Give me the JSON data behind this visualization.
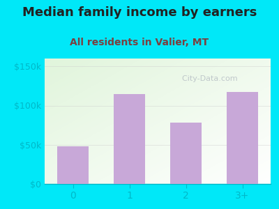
{
  "title": "Median family income by earners",
  "subtitle": "All residents in Valier, MT",
  "categories": [
    "0",
    "1",
    "2",
    "3+"
  ],
  "values": [
    48000,
    115000,
    78000,
    117000
  ],
  "bar_color": "#c8a8d8",
  "ylim": [
    0,
    160000
  ],
  "yticks": [
    0,
    50000,
    100000,
    150000
  ],
  "ytick_labels": [
    "$0",
    "$50k",
    "$100k",
    "$150k"
  ],
  "bg_outer": "#00e8f8",
  "title_fontsize": 13,
  "subtitle_fontsize": 10,
  "title_color": "#222222",
  "subtitle_color": "#7a4040",
  "tick_color": "#00b8c8",
  "watermark": "  City-Data.com",
  "watermark_color": "#b0b8c0",
  "watermark_alpha": 0.75
}
